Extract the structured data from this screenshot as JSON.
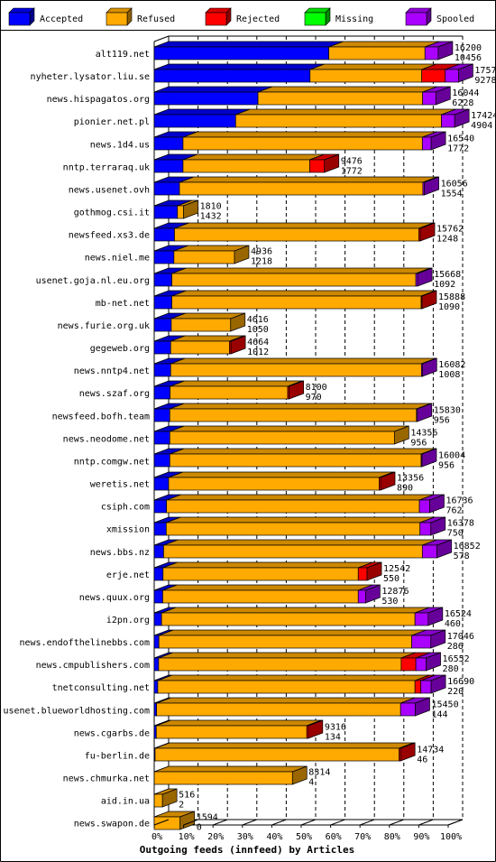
{
  "chart_data": {
    "type": "bar",
    "orientation": "horizontal",
    "stacked": true,
    "title": "Outgoing feeds (innfeed) by Articles",
    "xlim": [
      0,
      100
    ],
    "x_ticks": [
      "0%",
      "10%",
      "20%",
      "30%",
      "40%",
      "50%",
      "60%",
      "70%",
      "80%",
      "90%",
      "100%"
    ],
    "legend": {
      "placement": "top",
      "items": [
        {
          "name": "Accepted",
          "color": "#0000FF"
        },
        {
          "name": "Refused",
          "color": "#FFAA00"
        },
        {
          "name": "Rejected",
          "color": "#FF0000"
        },
        {
          "name": "Missing",
          "color": "#00FF00"
        },
        {
          "name": "Spooled",
          "color": "#AA00FF"
        }
      ]
    },
    "rows": [
      {
        "name": "alt119.net",
        "total": "16200",
        "accepted_label": "10456",
        "values": [
          59.4,
          32.7,
          0,
          0,
          4.5
        ]
      },
      {
        "name": "nyheter.lysator.liu.se",
        "total": "17578",
        "accepted_label": "9278",
        "values": [
          53.0,
          38.0,
          8.0,
          0,
          4.5
        ]
      },
      {
        "name": "news.hispagatos.org",
        "total": "16044",
        "accepted_label": "6228",
        "values": [
          35.3,
          56.0,
          0,
          0,
          4.5
        ]
      },
      {
        "name": "pionier.net.pl",
        "total": "17424",
        "accepted_label": "4904",
        "values": [
          27.7,
          70.0,
          0,
          0,
          4.5
        ]
      },
      {
        "name": "news.1d4.us",
        "total": "16540",
        "accepted_label": "1772",
        "values": [
          9.8,
          81.4,
          0,
          0,
          3.0
        ]
      },
      {
        "name": "nntp.terraraq.uk",
        "total": "9476",
        "accepted_label": "1772",
        "values": [
          9.8,
          43.1,
          5.0,
          0,
          0
        ]
      },
      {
        "name": "news.usenet.ovh",
        "total": "16056",
        "accepted_label": "1554",
        "values": [
          8.6,
          82.8,
          0,
          0,
          0.5
        ]
      },
      {
        "name": "gothmog.csi.it",
        "total": "1810",
        "accepted_label": "1432",
        "values": [
          7.9,
          2.1,
          0,
          0,
          0
        ]
      },
      {
        "name": "newsfeed.xs3.de",
        "total": "15762",
        "accepted_label": "1248",
        "values": [
          6.9,
          83.1,
          0.5,
          0,
          0
        ]
      },
      {
        "name": "news.niel.me",
        "total": "4936",
        "accepted_label": "1218",
        "values": [
          6.7,
          20.6,
          0,
          0,
          0
        ]
      },
      {
        "name": "usenet.goja.nl.eu.org",
        "total": "15668",
        "accepted_label": "1092",
        "values": [
          6.0,
          83.0,
          0,
          0,
          0.6
        ]
      },
      {
        "name": "mb-net.net",
        "total": "15888",
        "accepted_label": "1090",
        "values": [
          6.0,
          84.8,
          0.3,
          0,
          0
        ]
      },
      {
        "name": "news.furie.org.uk",
        "total": "4616",
        "accepted_label": "1050",
        "values": [
          5.8,
          20.2,
          0,
          0,
          0
        ]
      },
      {
        "name": "gegeweb.org",
        "total": "4664",
        "accepted_label": "1012",
        "values": [
          5.6,
          20.0,
          0.5,
          0,
          0
        ]
      },
      {
        "name": "news.nntp4.net",
        "total": "16082",
        "accepted_label": "1008",
        "values": [
          5.6,
          85.3,
          0,
          0,
          0.3
        ]
      },
      {
        "name": "news.szaf.org",
        "total": "8100",
        "accepted_label": "970",
        "values": [
          5.4,
          40.0,
          0.5,
          0,
          0
        ]
      },
      {
        "name": "newsfeed.bofh.team",
        "total": "15830",
        "accepted_label": "956",
        "values": [
          5.3,
          83.9,
          0,
          0,
          0.3
        ]
      },
      {
        "name": "news.neodome.net",
        "total": "14356",
        "accepted_label": "956",
        "values": [
          5.3,
          76.4,
          0,
          0,
          0
        ]
      },
      {
        "name": "nntp.comgw.net",
        "total": "16004",
        "accepted_label": "956",
        "values": [
          5.3,
          85.5,
          0,
          0,
          0.3
        ]
      },
      {
        "name": "weretis.net",
        "total": "13356",
        "accepted_label": "890",
        "values": [
          4.9,
          71.6,
          0.5,
          0,
          0
        ]
      },
      {
        "name": "csiph.com",
        "total": "16736",
        "accepted_label": "762",
        "values": [
          4.2,
          86.0,
          0,
          0,
          3.5
        ]
      },
      {
        "name": "xmission",
        "total": "16378",
        "accepted_label": "750",
        "values": [
          4.1,
          86.3,
          0,
          0,
          3.7
        ]
      },
      {
        "name": "news.bbs.nz",
        "total": "16852",
        "accepted_label": "578",
        "values": [
          3.2,
          88.0,
          0,
          0,
          5.0
        ]
      },
      {
        "name": "erje.net",
        "total": "12542",
        "accepted_label": "550",
        "values": [
          3.0,
          66.4,
          3.0,
          0,
          0
        ]
      },
      {
        "name": "news.quux.org",
        "total": "12876",
        "accepted_label": "530",
        "values": [
          2.9,
          66.5,
          0,
          0,
          2.5
        ]
      },
      {
        "name": "i2pn.org",
        "total": "16524",
        "accepted_label": "460",
        "values": [
          2.5,
          86.2,
          0,
          0,
          4.5
        ]
      },
      {
        "name": "news.endofthelinebbs.com",
        "total": "17046",
        "accepted_label": "286",
        "values": [
          1.6,
          86.0,
          0,
          0,
          6.5
        ]
      },
      {
        "name": "news.cmpublishers.com",
        "total": "16552",
        "accepted_label": "280",
        "values": [
          1.5,
          82.5,
          5.0,
          0,
          3.5
        ]
      },
      {
        "name": "tnetconsulting.net",
        "total": "16690",
        "accepted_label": "220",
        "values": [
          1.2,
          87.5,
          2.0,
          0,
          3.5
        ]
      },
      {
        "name": "usenet.blueworldhosting.com",
        "total": "15450",
        "accepted_label": "144",
        "values": [
          0.8,
          83.0,
          0,
          0,
          5.0
        ]
      },
      {
        "name": "news.cgarbs.de",
        "total": "9316",
        "accepted_label": "134",
        "values": [
          0.7,
          51.2,
          0.5,
          0,
          0
        ]
      },
      {
        "name": "fu-berlin.de",
        "total": "14734",
        "accepted_label": "46",
        "values": [
          0.3,
          83.0,
          0.5,
          0,
          0
        ]
      },
      {
        "name": "news.chmurka.net",
        "total": "8314",
        "accepted_label": "4",
        "values": [
          0.02,
          47.0,
          0,
          0,
          0
        ]
      },
      {
        "name": "aid.in.ua",
        "total": "516",
        "accepted_label": "2",
        "values": [
          0.01,
          2.8,
          0,
          0,
          0
        ]
      },
      {
        "name": "news.swapon.de",
        "total": "1594",
        "accepted_label": "0",
        "values": [
          0,
          8.8,
          0,
          0,
          0
        ]
      }
    ]
  }
}
